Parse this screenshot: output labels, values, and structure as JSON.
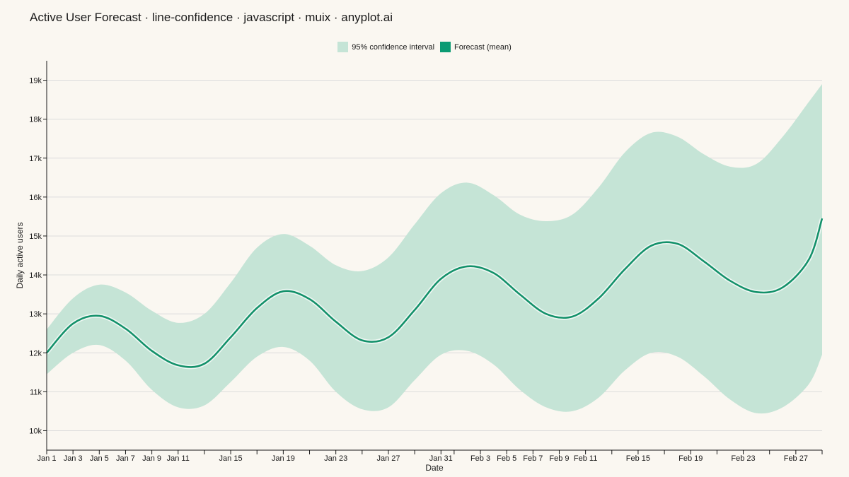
{
  "title": "Active User Forecast · line-confidence · javascript · muix · anyplot.ai",
  "colors": {
    "band": "#c5e4d6",
    "line": "#13916a",
    "grid": "#dcdcdc",
    "axis": "#1a1a1a"
  },
  "legend": [
    {
      "label": "95% confidence interval",
      "color": "#c5e4d6"
    },
    {
      "label": "Forecast (mean)",
      "color": "#0b9b73"
    }
  ],
  "chart_data": {
    "type": "line",
    "xlabel": "Date",
    "ylabel": "Daily active users",
    "x_range": [
      "2025-01-01",
      "2025-03-01"
    ],
    "ylim": [
      9500,
      19500
    ],
    "y_ticks": [
      10000,
      11000,
      12000,
      13000,
      14000,
      15000,
      16000,
      17000,
      18000,
      19000
    ],
    "y_tick_labels": [
      "10k",
      "11k",
      "12k",
      "13k",
      "14k",
      "15k",
      "16k",
      "17k",
      "18k",
      "19k"
    ],
    "x_ticks": [
      {
        "date": "2025-01-01",
        "label": "Jan 1"
      },
      {
        "date": "2025-01-03",
        "label": "Jan 3"
      },
      {
        "date": "2025-01-05",
        "label": "Jan 5"
      },
      {
        "date": "2025-01-07",
        "label": "Jan 7"
      },
      {
        "date": "2025-01-09",
        "label": "Jan 9"
      },
      {
        "date": "2025-01-11",
        "label": "Jan 11"
      },
      {
        "date": "2025-01-13",
        "label": ""
      },
      {
        "date": "2025-01-15",
        "label": "Jan 15"
      },
      {
        "date": "2025-01-17",
        "label": ""
      },
      {
        "date": "2025-01-19",
        "label": "Jan 19"
      },
      {
        "date": "2025-01-21",
        "label": ""
      },
      {
        "date": "2025-01-23",
        "label": "Jan 23"
      },
      {
        "date": "2025-01-25",
        "label": ""
      },
      {
        "date": "2025-01-27",
        "label": "Jan 27"
      },
      {
        "date": "2025-01-29",
        "label": ""
      },
      {
        "date": "2025-01-31",
        "label": "Jan 31"
      },
      {
        "date": "2025-02-01",
        "label": ""
      },
      {
        "date": "2025-02-03",
        "label": "Feb 3"
      },
      {
        "date": "2025-02-05",
        "label": "Feb 5"
      },
      {
        "date": "2025-02-07",
        "label": "Feb 7"
      },
      {
        "date": "2025-02-09",
        "label": "Feb 9"
      },
      {
        "date": "2025-02-11",
        "label": "Feb 11"
      },
      {
        "date": "2025-02-13",
        "label": ""
      },
      {
        "date": "2025-02-15",
        "label": "Feb 15"
      },
      {
        "date": "2025-02-17",
        "label": ""
      },
      {
        "date": "2025-02-19",
        "label": "Feb 19"
      },
      {
        "date": "2025-02-21",
        "label": ""
      },
      {
        "date": "2025-02-23",
        "label": "Feb 23"
      },
      {
        "date": "2025-02-25",
        "label": ""
      },
      {
        "date": "2025-02-27",
        "label": "Feb 27"
      },
      {
        "date": "2025-03-01",
        "label": ""
      }
    ],
    "series": [
      {
        "x": [
          "2025-01-01",
          "2025-01-03",
          "2025-01-05",
          "2025-01-07",
          "2025-01-09",
          "2025-01-11",
          "2025-01-13",
          "2025-01-15",
          "2025-01-17",
          "2025-01-19",
          "2025-01-21",
          "2025-01-23",
          "2025-01-25",
          "2025-01-27",
          "2025-01-29",
          "2025-01-31",
          "2025-02-02",
          "2025-02-04",
          "2025-02-06",
          "2025-02-08",
          "2025-02-10",
          "2025-02-12",
          "2025-02-14",
          "2025-02-16",
          "2025-02-18",
          "2025-02-20",
          "2025-02-22",
          "2025-02-24",
          "2025-02-26",
          "2025-02-28",
          "2025-03-01"
        ],
        "mean": [
          12000,
          12750,
          12950,
          12620,
          12050,
          11680,
          11720,
          12400,
          13150,
          13580,
          13380,
          12800,
          12320,
          12400,
          13100,
          13900,
          14220,
          14050,
          13500,
          13000,
          12930,
          13400,
          14150,
          14750,
          14800,
          14350,
          13850,
          13560,
          13680,
          14400,
          15450
        ],
        "lower": [
          11450,
          12000,
          12200,
          11800,
          11050,
          10600,
          10650,
          11250,
          11900,
          12150,
          11800,
          11000,
          10550,
          10600,
          11300,
          11950,
          12050,
          11700,
          11050,
          10600,
          10500,
          10850,
          11550,
          12000,
          11900,
          11400,
          10800,
          10450,
          10600,
          11200,
          11950
        ],
        "upper": [
          12600,
          13400,
          13750,
          13550,
          13080,
          12770,
          13000,
          13800,
          14700,
          15050,
          14750,
          14250,
          14100,
          14450,
          15300,
          16100,
          16370,
          16050,
          15550,
          15380,
          15550,
          16250,
          17150,
          17650,
          17550,
          17100,
          16780,
          16850,
          17550,
          18450,
          18900
        ]
      }
    ]
  }
}
